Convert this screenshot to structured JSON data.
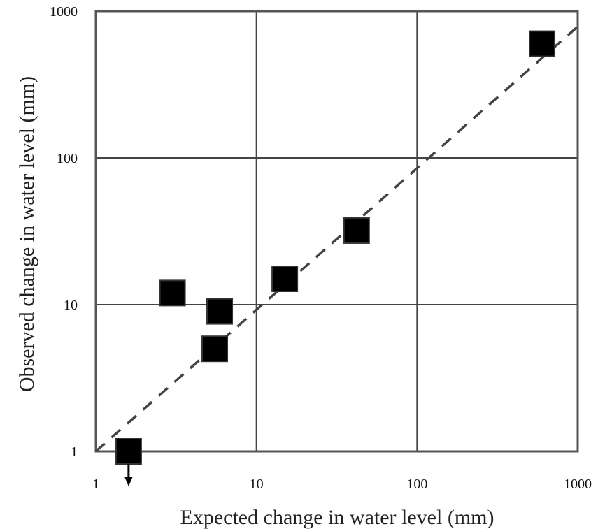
{
  "chart_data": {
    "type": "scatter",
    "xlabel": "Expected change  in water level (mm)",
    "ylabel": "Observed change  in water level (mm)",
    "xscale": "log",
    "yscale": "log",
    "xlim": [
      1,
      1000
    ],
    "ylim": [
      1,
      1000
    ],
    "x_ticks": [
      "1",
      "10",
      "100",
      "1000"
    ],
    "y_ticks": [
      "1",
      "10",
      "100",
      "1000"
    ],
    "grid": true,
    "reference_line": {
      "style": "dashed",
      "from": [
        1,
        1
      ],
      "to": [
        1000,
        1000
      ]
    },
    "series": [
      {
        "marker": "square",
        "color": "#000000",
        "points": [
          {
            "x": 1.6,
            "y": 1.0,
            "upper_limit": true
          },
          {
            "x": 3.0,
            "y": 12
          },
          {
            "x": 5.9,
            "y": 9
          },
          {
            "x": 5.5,
            "y": 5
          },
          {
            "x": 15,
            "y": 15
          },
          {
            "x": 42,
            "y": 32
          },
          {
            "x": 600,
            "y": 600
          }
        ]
      }
    ]
  }
}
